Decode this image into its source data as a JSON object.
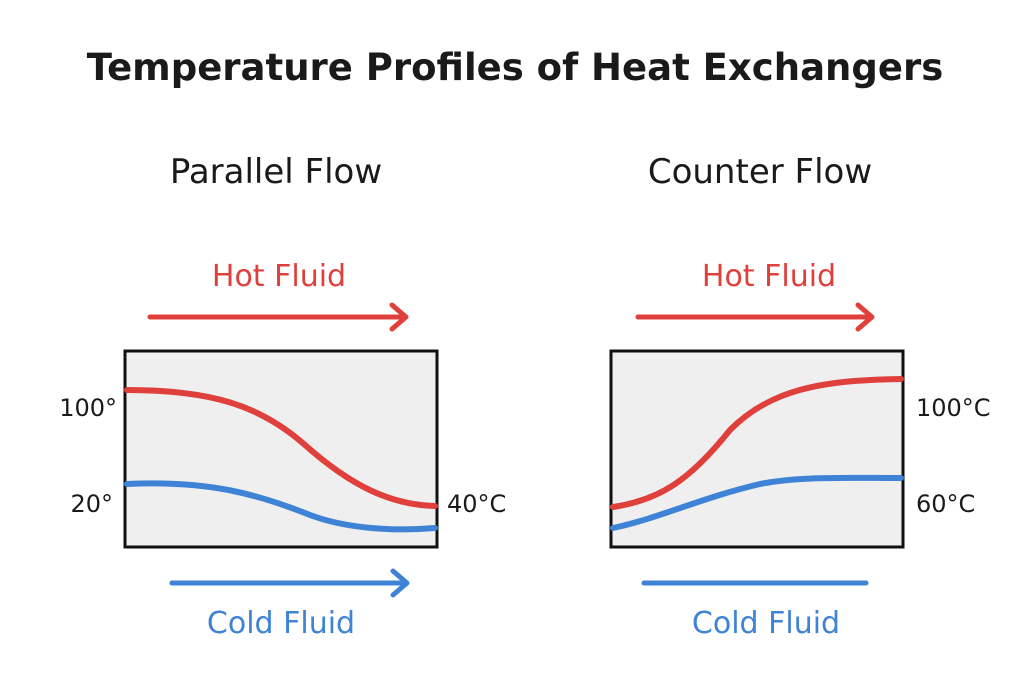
{
  "title": "Temperature Profiles of Heat Exchangers",
  "colors": {
    "hot": "#e0403c",
    "cold": "#3f83d6",
    "text": "#1a1a1a",
    "panel_fill": "#efefef",
    "panel_border": "#111111"
  },
  "panels": [
    {
      "title": "Parallel Flow",
      "hot_label": "Hot Fluid",
      "cold_label": "Cold Fluid",
      "hot_arrow": "right-arrow",
      "cold_arrow": "right-arrow",
      "left_labels": [
        "100°",
        "20°"
      ],
      "right_labels": [
        "40°C"
      ]
    },
    {
      "title": "Counter Flow",
      "hot_label": "Hot Fluid",
      "cold_label": "Cold Fluid",
      "hot_arrow": "right-arrow",
      "cold_arrow": "line",
      "left_labels": [],
      "right_labels": [
        "100°C",
        "60°C"
      ]
    }
  ]
}
